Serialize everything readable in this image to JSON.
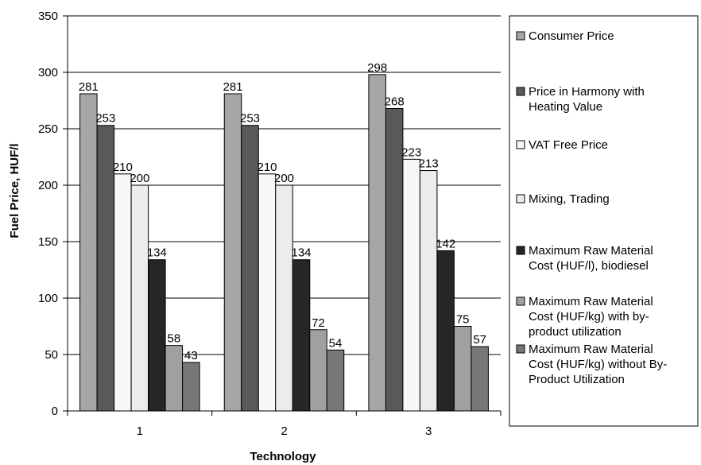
{
  "chart_data": {
    "type": "bar",
    "title": "",
    "xlabel": "Technology",
    "ylabel": "Fuel Price, HUF/l",
    "categories": [
      "1",
      "2",
      "3"
    ],
    "ylim": [
      0,
      350
    ],
    "yticks": [
      0,
      50,
      100,
      150,
      200,
      250,
      300,
      350
    ],
    "grid": true,
    "legend_position": "right",
    "series": [
      {
        "name": "Consumer Price",
        "values": [
          281,
          281,
          298
        ],
        "color": "#a6a6a6"
      },
      {
        "name": "Price in Harmony with Heating Value",
        "values": [
          253,
          253,
          268
        ],
        "color": "#595959"
      },
      {
        "name": "VAT Free Price",
        "values": [
          210,
          210,
          223
        ],
        "color": "#f7f7f7"
      },
      {
        "name": "Mixing, Trading",
        "values": [
          200,
          200,
          213
        ],
        "color": "#ececec"
      },
      {
        "name": "Maximum Raw Material Cost (HUF/l), biodiesel",
        "values": [
          134,
          134,
          142
        ],
        "color": "#262626"
      },
      {
        "name": "Maximum Raw Material Cost (HUF/kg) with by-product utilization",
        "values": [
          58,
          72,
          75
        ],
        "color": "#a0a0a0"
      },
      {
        "name": "Maximum Raw Material Cost (HUF/kg) without By-Product Utilization",
        "values": [
          43,
          54,
          57
        ],
        "color": "#777777"
      }
    ],
    "legend_lines": [
      [
        "Consumer Price"
      ],
      [
        "Price in Harmony with",
        "Heating Value"
      ],
      [
        "VAT Free Price"
      ],
      [
        "Mixing, Trading"
      ],
      [
        "Maximum Raw Material",
        "Cost (HUF/l), biodiesel"
      ],
      [
        "Maximum Raw Material",
        "Cost (HUF/kg) with by-",
        "product utilization"
      ],
      [
        "Maximum Raw Material",
        "Cost (HUF/kg) without By-",
        "Product Utilization"
      ]
    ]
  }
}
